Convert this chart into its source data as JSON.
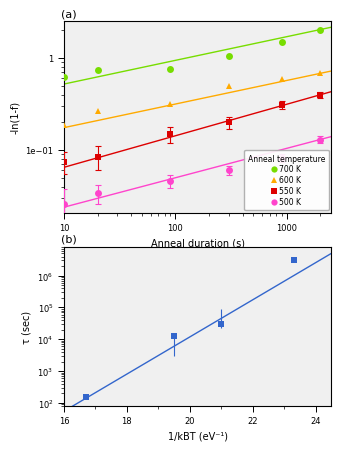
{
  "panel_a": {
    "title": "(a)",
    "xlabel": "Anneal duration (s)",
    "ylabel": "-ln(1-f)",
    "xlim": [
      10,
      2500
    ],
    "ylim": [
      0.021,
      2.5
    ],
    "series": [
      {
        "label": "700 K",
        "color": "#77dd00",
        "marker": "o",
        "x": [
          10,
          20,
          90,
          300,
          900,
          2000
        ],
        "y": [
          0.62,
          0.73,
          0.76,
          1.05,
          1.5,
          2.0
        ],
        "fit_x": [
          10,
          2500
        ],
        "fit_y": [
          0.52,
          2.15
        ],
        "yerr": null
      },
      {
        "label": "600 K",
        "color": "#ffaa00",
        "marker": "^",
        "x": [
          10,
          20,
          90,
          300,
          900,
          2000
        ],
        "y": [
          0.185,
          0.265,
          0.315,
          0.5,
          0.585,
          0.68
        ],
        "fit_x": [
          10,
          2500
        ],
        "fit_y": [
          0.175,
          0.72
        ],
        "yerr": null
      },
      {
        "label": "550 K",
        "color": "#dd0000",
        "marker": "s",
        "x": [
          10,
          20,
          90,
          300,
          900,
          2000
        ],
        "y": [
          0.075,
          0.085,
          0.15,
          0.2,
          0.31,
          0.4
        ],
        "fit_x": [
          10,
          2500
        ],
        "fit_y": [
          0.065,
          0.43
        ],
        "yerr": [
          0.02,
          0.025,
          0.03,
          0.03,
          0.03,
          0.03
        ]
      },
      {
        "label": "500 K",
        "color": "#ff44cc",
        "marker": "o",
        "x": [
          10,
          20,
          90,
          300,
          900,
          2000
        ],
        "y": [
          0.026,
          0.034,
          0.046,
          0.06,
          0.082,
          0.13
        ],
        "fit_x": [
          10,
          2500
        ],
        "fit_y": [
          0.024,
          0.14
        ],
        "yerr": [
          0.012,
          0.008,
          0.007,
          0.007,
          0.008,
          0.012
        ]
      }
    ],
    "legend_title": "Anneal temperature"
  },
  "panel_b": {
    "title": "(b)",
    "xlabel": "1/kBT (eV⁻¹)",
    "ylabel": "τ (sec)",
    "xlim": [
      16,
      24.5
    ],
    "ylim": [
      80,
      8000000.0
    ],
    "color": "#3366cc",
    "x_data": [
      16.7,
      19.5,
      21.0,
      23.3
    ],
    "y_data": [
      150,
      13000,
      30000,
      3000000
    ],
    "yerr_low": [
      20,
      10000,
      8000,
      0
    ],
    "yerr_high": [
      20,
      3000,
      60000,
      0
    ],
    "fit_x": [
      16.0,
      24.5
    ],
    "fit_y": [
      55,
      5000000
    ]
  },
  "bg_color": "#f0f0f0"
}
